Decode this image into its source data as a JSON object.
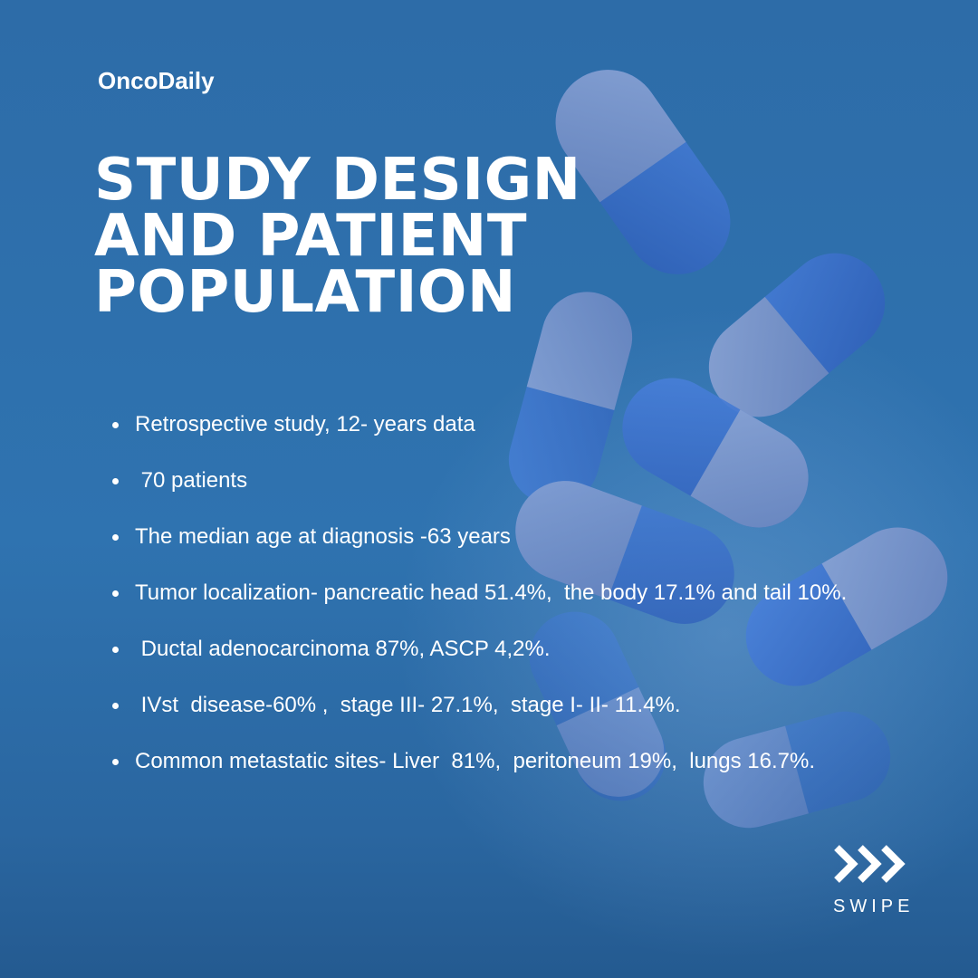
{
  "brand": {
    "name": "OncoDaily"
  },
  "title": {
    "lines": [
      "STUDY DESIGN",
      "AND PATIENT",
      "POPULATION"
    ]
  },
  "bullets": [
    "Retrospective study, 12- years data",
    " 70 patients",
    "The median age at diagnosis -63 years",
    "Tumor localization- pancreatic head 51.4%,  the body 17.1% and tail 10%.",
    " Ductal adenocarcinoma 87%, ASCP 4,2%.",
    " IVst  disease-60% ,  stage III- 27.1%,  stage I- II- 11.4%.",
    "Common metastatic sites- Liver  81%,  peritoneum 19%,  lungs 16.7%."
  ],
  "swipe": {
    "label": "SWIPE",
    "icon": "triple-chevron-right-icon"
  },
  "colors": {
    "background": "#2f73b0",
    "pill_blue": "#3a6fd0",
    "pill_pale": "#7d97c9",
    "text": "#ffffff"
  }
}
